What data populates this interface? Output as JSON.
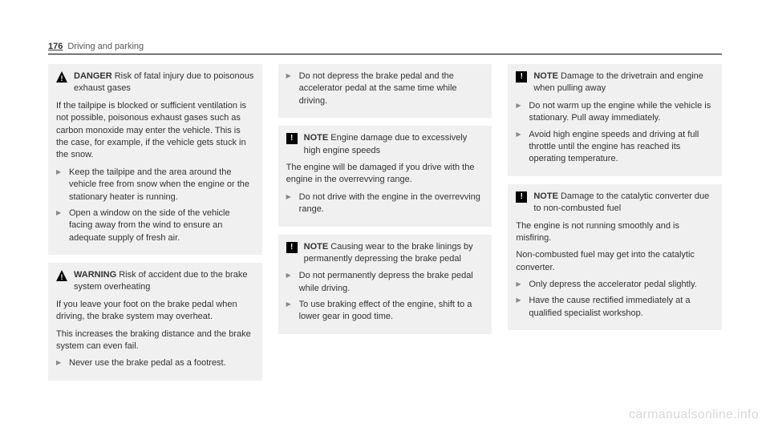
{
  "header": {
    "page_number": "176",
    "section": "Driving and parking"
  },
  "boxes": {
    "danger": {
      "label": "DANGER",
      "title": "Risk of fatal injury due to poisonous exhaust gases",
      "body": "If the tailpipe is blocked or sufficient ventilation is not possible, poisonous exhaust gases such as carbon monoxide may enter the vehicle. This is the case, for example, if the vehicle gets stuck in the snow.",
      "items": [
        "Keep the tailpipe and the area around the vehicle free from snow when the engine or the stationary heater is running.",
        "Open a window on the side of the vehicle facing away from the wind to ensure an adequate supply of fresh air."
      ]
    },
    "warning": {
      "label": "WARNING",
      "title": "Risk of accident due to the brake system overheating",
      "body1": "If you leave your foot on the brake pedal when driving, the brake system may overheat.",
      "body2": "This increases the braking distance and the brake system can even fail.",
      "items": [
        "Never use the brake pedal as a footrest."
      ]
    },
    "col2_top": {
      "items": [
        "Do not depress the brake pedal and the accelerator pedal at the same time while driving."
      ]
    },
    "note_engine": {
      "label": "NOTE",
      "title": "Engine damage due to excessively high engine speeds",
      "body": "The engine will be damaged if you drive with the engine in the overrevving range.",
      "items": [
        "Do not drive with the engine in the overrevving range."
      ]
    },
    "note_brake": {
      "label": "NOTE",
      "title": "Causing wear to the brake linings by permanently depressing the brake pedal",
      "items": [
        "Do not permanently depress the brake pedal while driving.",
        "To use braking effect of the engine, shift to a lower gear in good time."
      ]
    },
    "note_drivetrain": {
      "label": "NOTE",
      "title": "Damage to the drivetrain and engine when pulling away",
      "items": [
        "Do not warm up the engine while the vehicle is stationary. Pull away immediately.",
        "Avoid high engine speeds and driving at full throttle until the engine has reached its operating temperature."
      ]
    },
    "note_catalytic": {
      "label": "NOTE",
      "title": "Damage to the catalytic converter due to non-combusted fuel",
      "body1": "The engine is not running smoothly and is misfiring.",
      "body2": "Non-combusted fuel may get into the catalytic converter.",
      "items": [
        "Only depress the accelerator pedal slightly.",
        "Have the cause rectified immediately at a qualified specialist workshop."
      ]
    }
  },
  "watermark": "carmanualsonline.info"
}
